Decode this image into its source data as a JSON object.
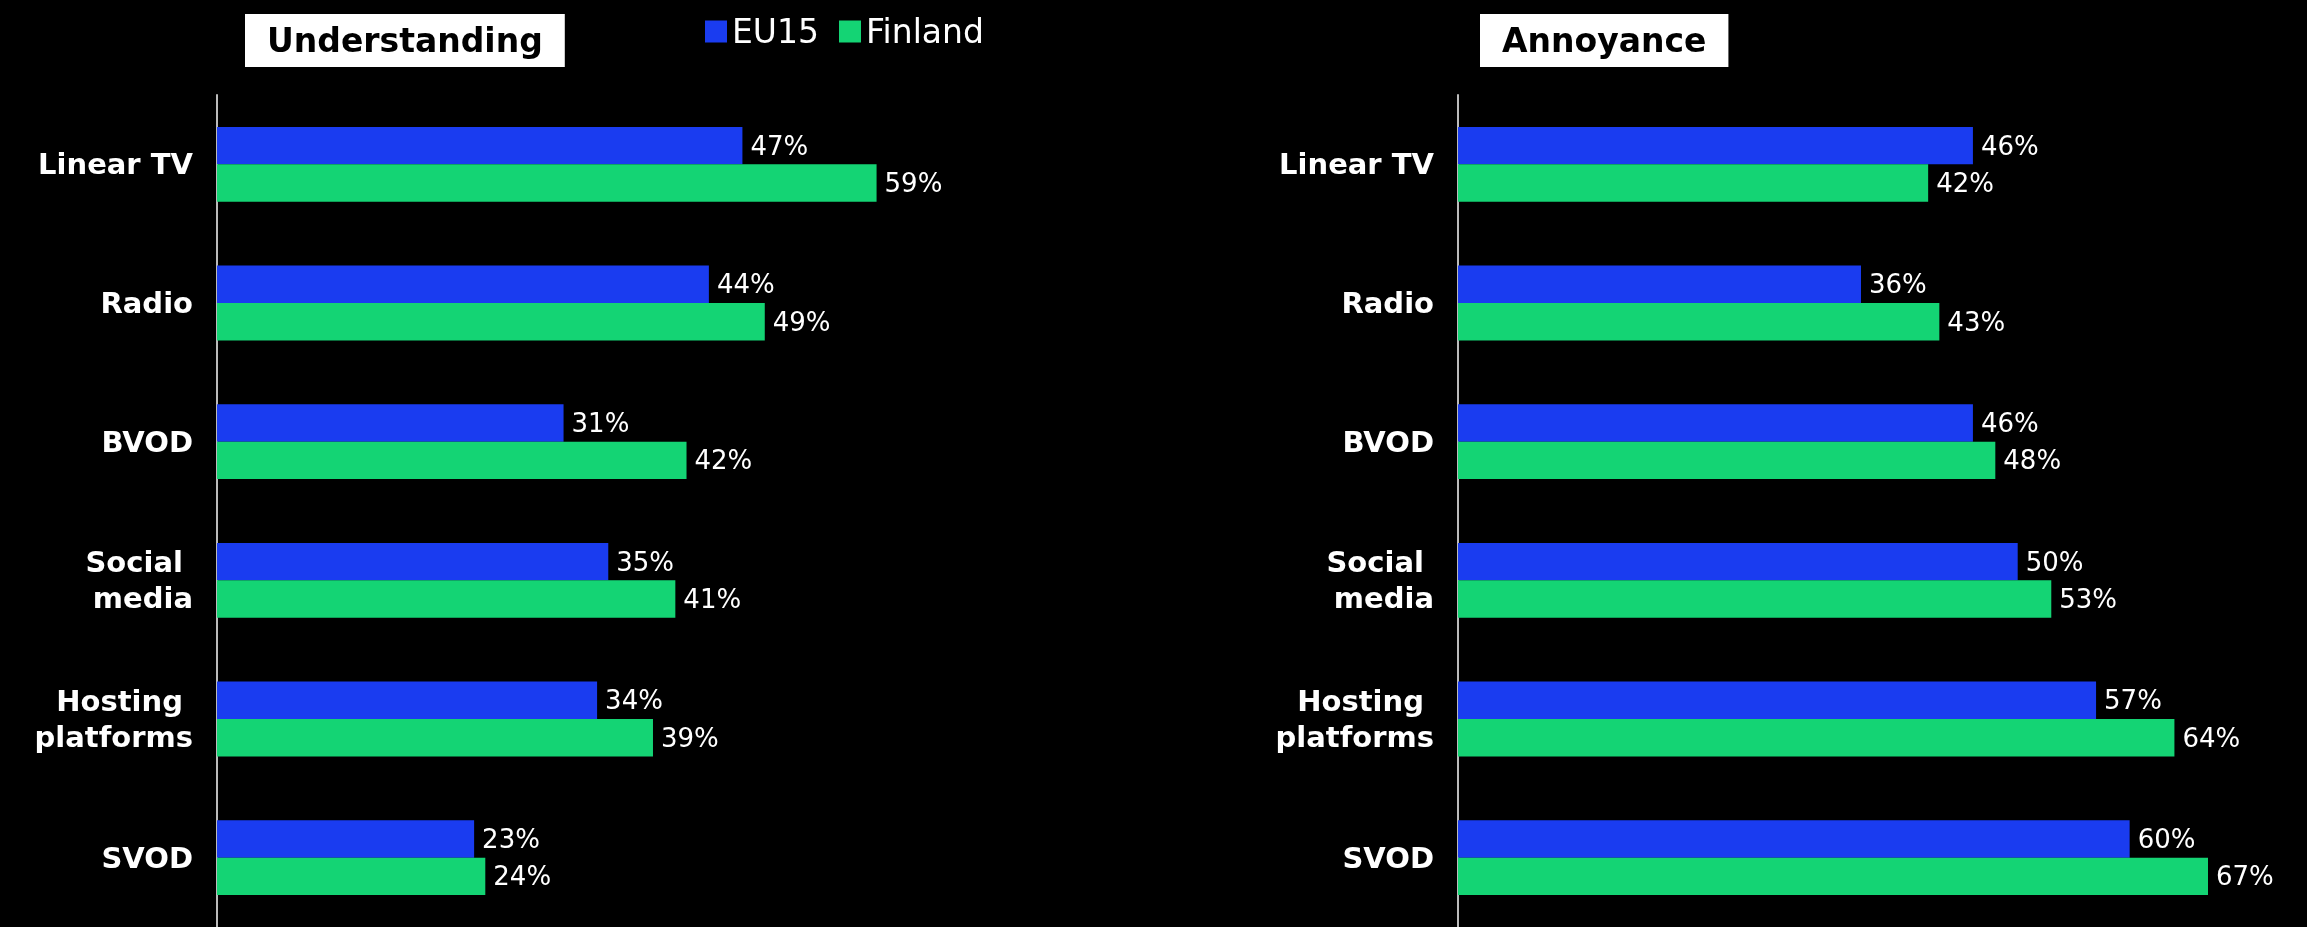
{
  "chart_data": [
    {
      "type": "bar",
      "orientation": "horizontal",
      "title": "Understanding",
      "legend": "top",
      "categories": [
        "Linear TV",
        "Radio",
        "BVOD",
        "Social media",
        "Hosting platforms",
        "SVOD"
      ],
      "series": [
        {
          "name": "EU15",
          "color": "#1a3cf0",
          "values": [
            47,
            44,
            31,
            35,
            34,
            23
          ],
          "value_labels": [
            "47%",
            "44%",
            "31%",
            "35%",
            "34%",
            "23%"
          ]
        },
        {
          "name": "Finland",
          "color": "#14d474",
          "values": [
            59,
            49,
            42,
            41,
            39,
            24
          ],
          "value_labels": [
            "59%",
            "49%",
            "42%",
            "41%",
            "39%",
            "24%"
          ]
        }
      ]
    },
    {
      "type": "bar",
      "orientation": "horizontal",
      "title": "Annoyance",
      "categories": [
        "Linear TV",
        "Radio",
        "BVOD",
        "Social media",
        "Hosting platforms",
        "SVOD"
      ],
      "series": [
        {
          "color": "#1a3cf0",
          "values": [
            46,
            36,
            46,
            50,
            57,
            60
          ],
          "value_labels": [
            "46%",
            "36%",
            "46%",
            "50%",
            "57%",
            "60%"
          ]
        },
        {
          "color": "#14d474",
          "values": [
            42,
            43,
            48,
            53,
            64,
            67
          ],
          "value_labels": [
            "42%",
            "43%",
            "48%",
            "53%",
            "64%",
            "67%"
          ]
        }
      ]
    }
  ]
}
